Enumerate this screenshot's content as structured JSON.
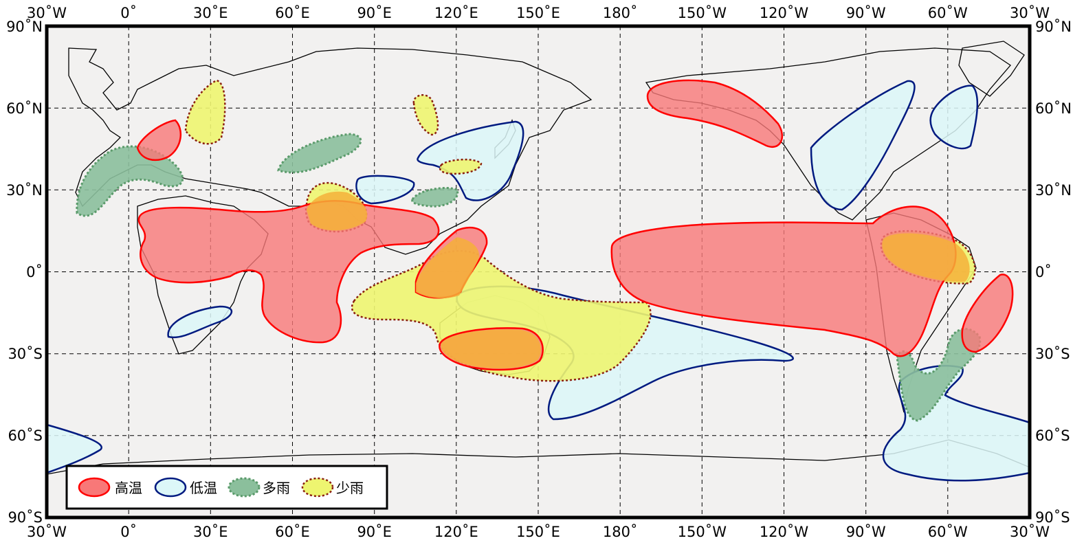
{
  "map": {
    "lon_labels": [
      "30˚W",
      "0˚",
      "30˚E",
      "60˚E",
      "90˚E",
      "120˚E",
      "150˚E",
      "180˚",
      "150˚W",
      "120˚W",
      "90˚W",
      "60˚W",
      "30˚W"
    ],
    "lat_labels": [
      "90˚N",
      "60˚N",
      "30˚N",
      "0˚",
      "30˚S",
      "60˚S",
      "90˚S"
    ],
    "colors": {
      "ocean": "#f2f1f0",
      "warm_fill": "#f87878",
      "warm_stroke": "#ff0000",
      "cold_fill": "#dcf7f8",
      "cold_stroke": "#001a80",
      "wet_fill": "#8bbf9c",
      "wet_stroke": "#5a9a6a",
      "dry_fill": "#eef570",
      "dry_stroke": "#8b1f10",
      "overlap_fill": "#f5b03a"
    }
  },
  "legend": {
    "items": [
      {
        "label": "高温",
        "kind": "warm"
      },
      {
        "label": "低温",
        "kind": "cold"
      },
      {
        "label": "多雨",
        "kind": "wet"
      },
      {
        "label": "少雨",
        "kind": "dry"
      }
    ]
  }
}
